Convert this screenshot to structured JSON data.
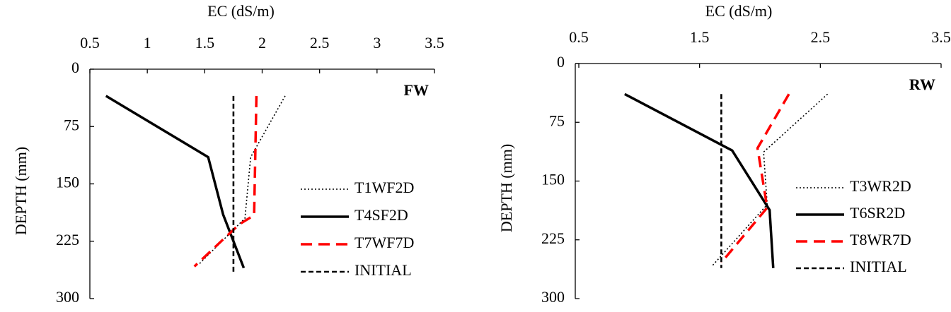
{
  "chart_data": [
    {
      "type": "line",
      "panel_label": "FW",
      "x_label": "EC (dS/m)",
      "y_label": "DEPTH (mm)",
      "xlim": [
        0.5,
        3.5
      ],
      "xticks": [
        0.5,
        1,
        1.5,
        2,
        2.5,
        3,
        3.5
      ],
      "ylim": [
        300,
        0
      ],
      "yticks": [
        0,
        75,
        150,
        225,
        300
      ],
      "legend": "lower right",
      "series": [
        {
          "name": "T1WF2D",
          "color": "#000000",
          "style": "dotted",
          "x": [
            2.2,
            1.9,
            1.85,
            1.45
          ],
          "values": [
            35,
            115,
            195,
            255
          ]
        },
        {
          "name": "T4SF2D",
          "color": "#000000",
          "style": "solid",
          "x": [
            0.64,
            1.53,
            1.66,
            1.84
          ],
          "values": [
            35,
            115,
            190,
            260
          ]
        },
        {
          "name": "T7WF7D",
          "color": "#ff0000",
          "style": "dashed",
          "x": [
            1.95,
            1.93,
            1.8,
            1.41
          ],
          "values": [
            35,
            191,
            203,
            258
          ]
        },
        {
          "name": "INITIAL",
          "color": "#000000",
          "style": "short-dashed",
          "x": [
            1.75,
            1.75
          ],
          "values": [
            35,
            265
          ]
        }
      ]
    },
    {
      "type": "line",
      "panel_label": "RW",
      "x_label": "EC (dS/m)",
      "y_label": "DEPTH (mm)",
      "xlim": [
        0.5,
        3.5
      ],
      "xticks": [
        0.5,
        1.5,
        2.5,
        3.5
      ],
      "ylim": [
        300,
        0
      ],
      "yticks": [
        0,
        75,
        150,
        225,
        300
      ],
      "legend": "lower right",
      "series": [
        {
          "name": "T3WR2D",
          "color": "#000000",
          "style": "dotted",
          "x": [
            2.56,
            2.03,
            2.06,
            1.6
          ],
          "values": [
            39,
            113,
            180,
            259
          ]
        },
        {
          "name": "T6SR2D",
          "color": "#000000",
          "style": "solid",
          "x": [
            0.88,
            1.77,
            2.08,
            2.11
          ],
          "values": [
            39,
            111,
            187,
            261
          ]
        },
        {
          "name": "T8WR7D",
          "color": "#ff0000",
          "style": "dashed",
          "x": [
            2.24,
            1.98,
            2.06,
            1.68
          ],
          "values": [
            39,
            108,
            184,
            254
          ]
        },
        {
          "name": "INITIAL",
          "color": "#000000",
          "style": "short-dashed",
          "x": [
            1.68,
            1.68
          ],
          "values": [
            39,
            261
          ]
        }
      ]
    }
  ]
}
